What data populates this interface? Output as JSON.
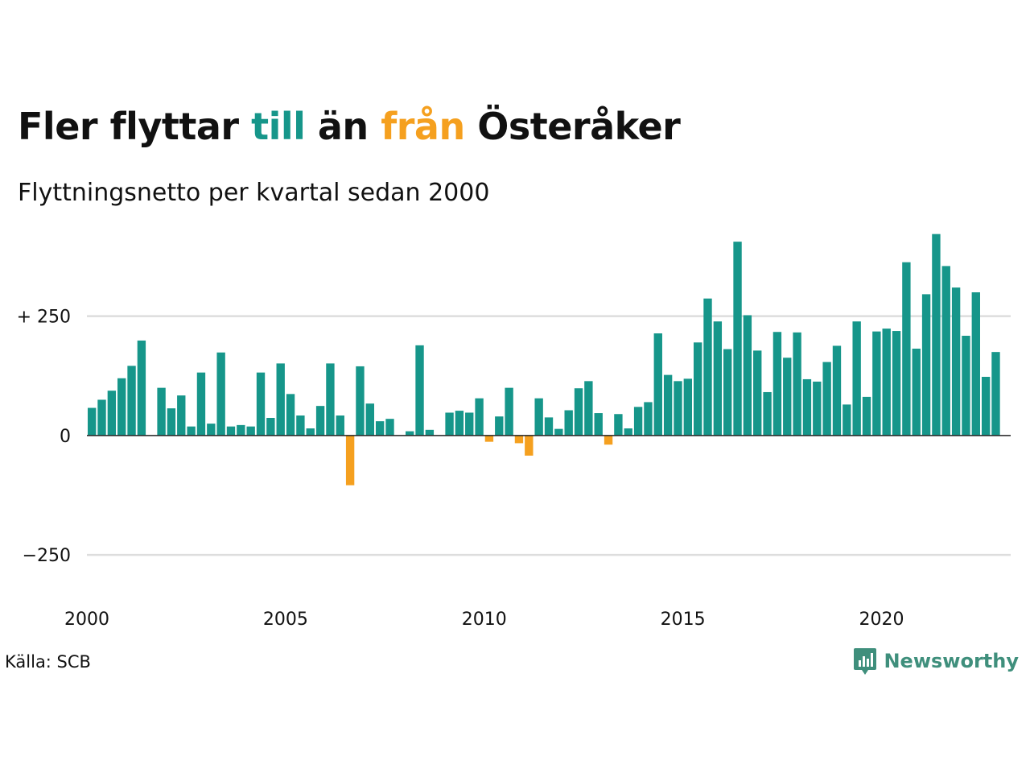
{
  "header": {
    "title_parts": [
      "Fler flyttar ",
      "till",
      " än ",
      "från",
      " Österåker"
    ],
    "subtitle": "Flyttningsnetto per kvartal sedan 2000"
  },
  "footer": {
    "source": "Källa: SCB",
    "brand": "Newsworthy"
  },
  "colors": {
    "positive": "#16968a",
    "negative": "#f5a01f",
    "grid": "#dddddd",
    "axis": "#222222",
    "text": "#111111",
    "brand": "#3f8f7c"
  },
  "icons": {
    "brand_logo": "bar-chart-speech-bubble-icon"
  },
  "chart_data": {
    "type": "bar",
    "title": "Fler flyttar till än från Österåker",
    "subtitle": "Flyttningsnetto per kvartal sedan 2000",
    "xlabel": "",
    "ylabel": "",
    "ylim": [
      -420,
      440
    ],
    "xlim": [
      2000,
      2023.25
    ],
    "yticks": [
      250,
      0,
      -250
    ],
    "ytick_labels": [
      "+ 250",
      "0",
      "−250"
    ],
    "xticks": [
      2000,
      2005,
      2010,
      2015,
      2020
    ],
    "xtick_labels": [
      "2000",
      "2005",
      "2010",
      "2015",
      "2020"
    ],
    "grid": true,
    "bars_per_year": 4,
    "start_year": 2000,
    "values": [
      58,
      75,
      94,
      120,
      146,
      199,
      0,
      100,
      57,
      84,
      19,
      132,
      25,
      174,
      19,
      22,
      19,
      132,
      37,
      151,
      87,
      42,
      15,
      62,
      151,
      42,
      -104,
      145,
      67,
      30,
      35,
      0,
      9,
      189,
      12,
      0,
      48,
      52,
      48,
      78,
      -13,
      40,
      100,
      -16,
      -42,
      78,
      38,
      14,
      53,
      99,
      114,
      47,
      -19,
      45,
      15,
      60,
      70,
      214,
      127,
      114,
      119,
      195,
      287,
      239,
      181,
      406,
      252,
      178,
      91,
      217,
      163,
      216,
      118,
      113,
      154,
      188,
      65,
      239,
      81,
      218,
      224,
      219,
      363,
      182,
      296,
      422,
      355,
      310,
      209,
      300,
      123,
      175
    ]
  }
}
